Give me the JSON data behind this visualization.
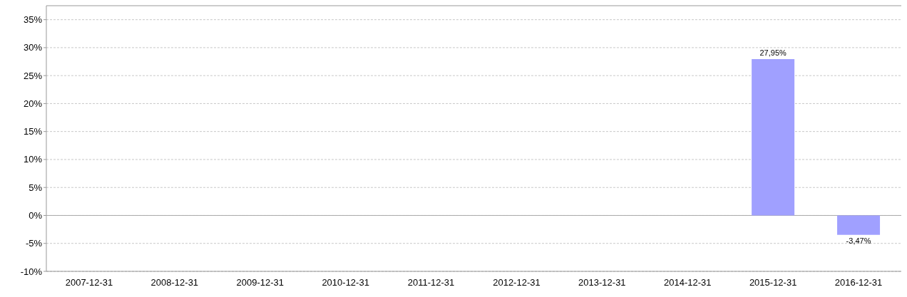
{
  "chart_data": {
    "type": "bar",
    "categories": [
      "2007-12-31",
      "2008-12-31",
      "2009-12-31",
      "2010-12-31",
      "2011-12-31",
      "2012-12-31",
      "2013-12-31",
      "2014-12-31",
      "2015-12-31",
      "2016-12-31"
    ],
    "values": [
      null,
      null,
      null,
      null,
      null,
      null,
      null,
      null,
      27.95,
      -3.47
    ],
    "value_labels": [
      null,
      null,
      null,
      null,
      null,
      null,
      null,
      null,
      "27,95%",
      "-3,47%"
    ],
    "color": "#a0a0ff",
    "ylim": [
      -10,
      37.5
    ],
    "yticks": [
      {
        "value": -10,
        "label": "-10%"
      },
      {
        "value": -5,
        "label": "-5%"
      },
      {
        "value": 0,
        "label": "0%"
      },
      {
        "value": 5,
        "label": "5%"
      },
      {
        "value": 10,
        "label": "10%"
      },
      {
        "value": 15,
        "label": "15%"
      },
      {
        "value": 20,
        "label": "20%"
      },
      {
        "value": 25,
        "label": "25%"
      },
      {
        "value": 30,
        "label": "30%"
      },
      {
        "value": 35,
        "label": "35%"
      }
    ],
    "grid": "y"
  }
}
